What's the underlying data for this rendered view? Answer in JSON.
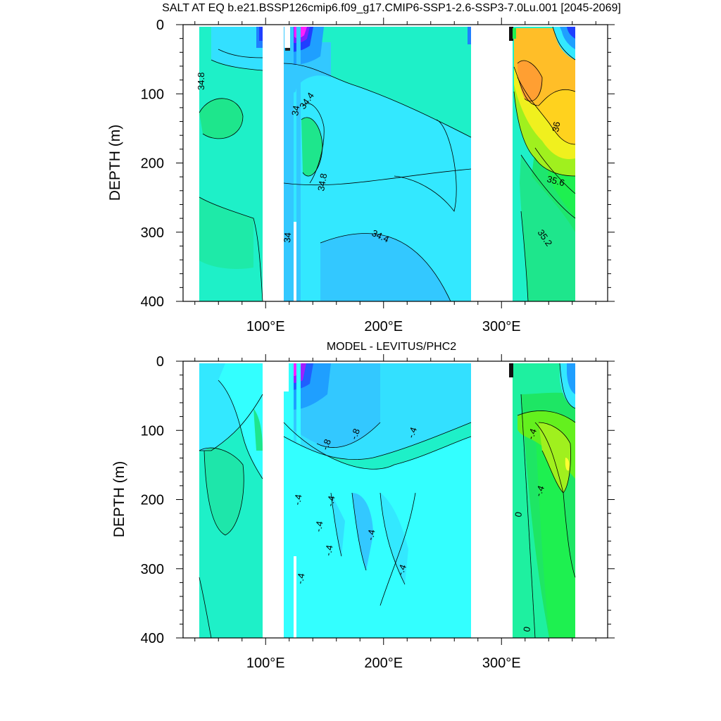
{
  "chart_data": [
    {
      "type": "heatmap",
      "title": "SALT AT EQ b.e21.BSSP126cmip6.f09_g17.CMIP6-SSP1-2.6-SSP3-7.0Lu.001 [2045-2069]",
      "ylabel": "DEPTH (m)",
      "xlabel": "",
      "xlim": [
        30,
        390
      ],
      "ylim": [
        400,
        0
      ],
      "x_ticks": [
        100,
        200,
        300
      ],
      "x_tick_labels": [
        "100°E",
        "200°E",
        "300°E"
      ],
      "y_ticks": [
        0,
        100,
        200,
        300,
        400
      ],
      "y_tick_labels": [
        "0",
        "100",
        "200",
        "300",
        "400"
      ],
      "land_gaps_lon": [
        [
          97,
          118
        ],
        [
          278,
          315
        ]
      ],
      "contour_labels": [
        "34.8",
        "34",
        "34.4",
        "34.8",
        "34",
        "34.4",
        "36",
        "35.6",
        "35.2"
      ],
      "grid": false
    },
    {
      "type": "heatmap",
      "title": "MODEL - LEVITUS/PHC2",
      "ylabel": "DEPTH (m)",
      "xlabel": "",
      "xlim": [
        30,
        390
      ],
      "ylim": [
        400,
        0
      ],
      "x_ticks": [
        100,
        200,
        300
      ],
      "x_tick_labels": [
        "100°E",
        "200°E",
        "300°E"
      ],
      "y_ticks": [
        0,
        100,
        200,
        300,
        400
      ],
      "y_tick_labels": [
        "0",
        "100",
        "200",
        "300",
        "400"
      ],
      "land_gaps_lon": [
        [
          97,
          118
        ],
        [
          278,
          315
        ]
      ],
      "contour_labels": [
        "-.8",
        "-.8",
        "-.4",
        "-.4",
        "-.4",
        "-.4",
        "-.4",
        "-.4",
        "-.4",
        "-.4",
        "-.4",
        "-.4",
        "-.4",
        "0",
        "0"
      ],
      "grid": false
    }
  ]
}
